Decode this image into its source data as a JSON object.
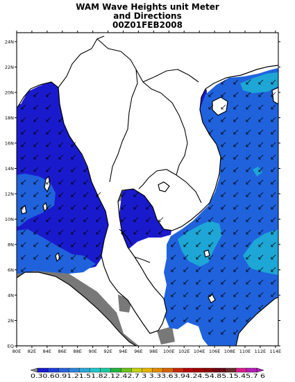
{
  "title_lines": [
    "WAM Wave Heights unit Meter",
    "and Directions",
    "00Z01FEB2008"
  ],
  "lon_labels": [
    "80E",
    "82E",
    "84E",
    "86E",
    "88E",
    "90E",
    "92E",
    "94E",
    "96E",
    "98E",
    "100E",
    "102E",
    "104E",
    "106E",
    "108E",
    "110E",
    "112E",
    "114E"
  ],
  "lat_labels": [
    "EQ",
    "2N",
    "4N",
    "6N",
    "8N",
    "10N",
    "12N",
    "14N",
    "16N",
    "18N",
    "20N",
    "22N",
    "24N"
  ],
  "legend": {
    "labels": [
      "0.3",
      "0.6",
      "0.9",
      "1.2",
      "1.5",
      "1.8",
      "2.1",
      "2.4",
      "2.7",
      "3",
      "3.3",
      "3.6",
      "3.9",
      "4.2",
      "4.5",
      "4.8",
      "5.1",
      "5.4",
      "5.7",
      "6"
    ],
    "label_string": "0.30.60.91.21.51.82.12.42.7 3 3.33.63.94.24.54.85.15.45.7 6",
    "colors": [
      "#1a1acd",
      "#1f3fd9",
      "#2a62dc",
      "#2d84d8",
      "#2aa8d6",
      "#22c6c8",
      "#1fc8a0",
      "#22b43c",
      "#6cc31c",
      "#c4d20e",
      "#e6b400",
      "#e28c00",
      "#d86400",
      "#c82800",
      "#b40000",
      "#a00000",
      "#8a0000",
      "#6a0018",
      "#6a2a2a",
      "#d81e8a",
      "#b41eb4"
    ],
    "colors_note_omitted": true
  },
  "colors": {
    "land": "#ffffff",
    "coastline": "#000000",
    "undefined_gray": "#787878",
    "band_0_3_0_6": "#1a1acd",
    "band_0_6_0_9": "#1f62dc",
    "band_0_9_1_2": "#1da6d6",
    "band_1_2_1_5": "#2cc3d8",
    "arrow": "#000000"
  }
}
